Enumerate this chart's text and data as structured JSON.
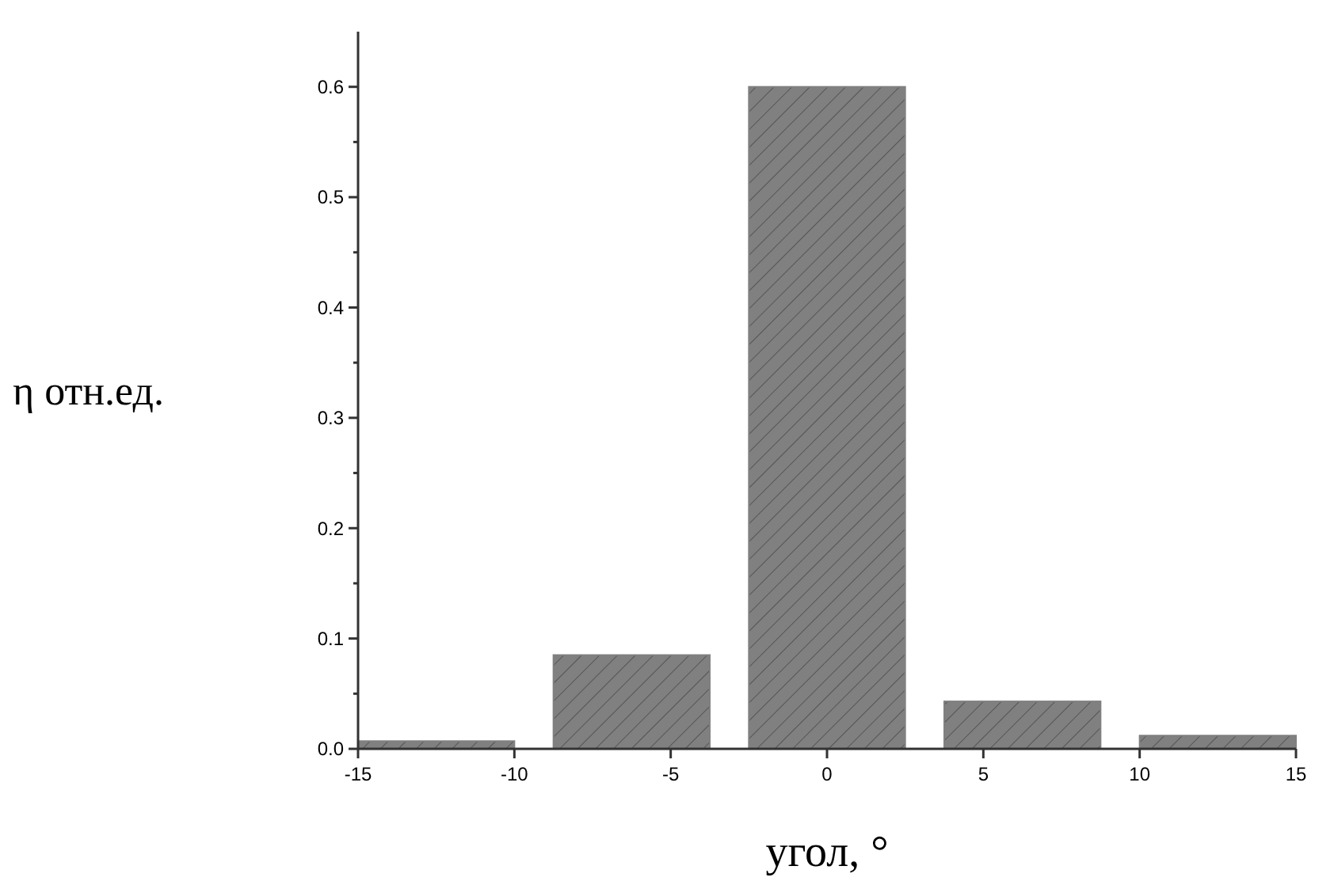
{
  "chart_data": {
    "type": "bar",
    "xlabel": "угол, °",
    "ylabel": "η отн.ед.",
    "x": [
      -12.5,
      -6.25,
      0,
      6.25,
      12.5
    ],
    "values": [
      0.007,
      0.085,
      0.6,
      0.043,
      0.012
    ],
    "color": "#808080",
    "xlim": [
      -15,
      15
    ],
    "xticks": [
      -15,
      -10,
      -5,
      0,
      5,
      10,
      15
    ],
    "ylim": [
      0,
      0.65
    ],
    "yticks": [
      {
        "value": 0,
        "label": "0.0"
      },
      {
        "value": 0.05,
        "label": null
      },
      0.1,
      {
        "value": 0.15,
        "label": null
      },
      0.2,
      {
        "value": 0.25,
        "label": null
      },
      0.3,
      {
        "value": 0.35,
        "label": null
      },
      0.4,
      {
        "value": 0.45,
        "label": null
      },
      0.5,
      {
        "value": 0.55,
        "label": null
      },
      0.6
    ],
    "grid": false
  }
}
